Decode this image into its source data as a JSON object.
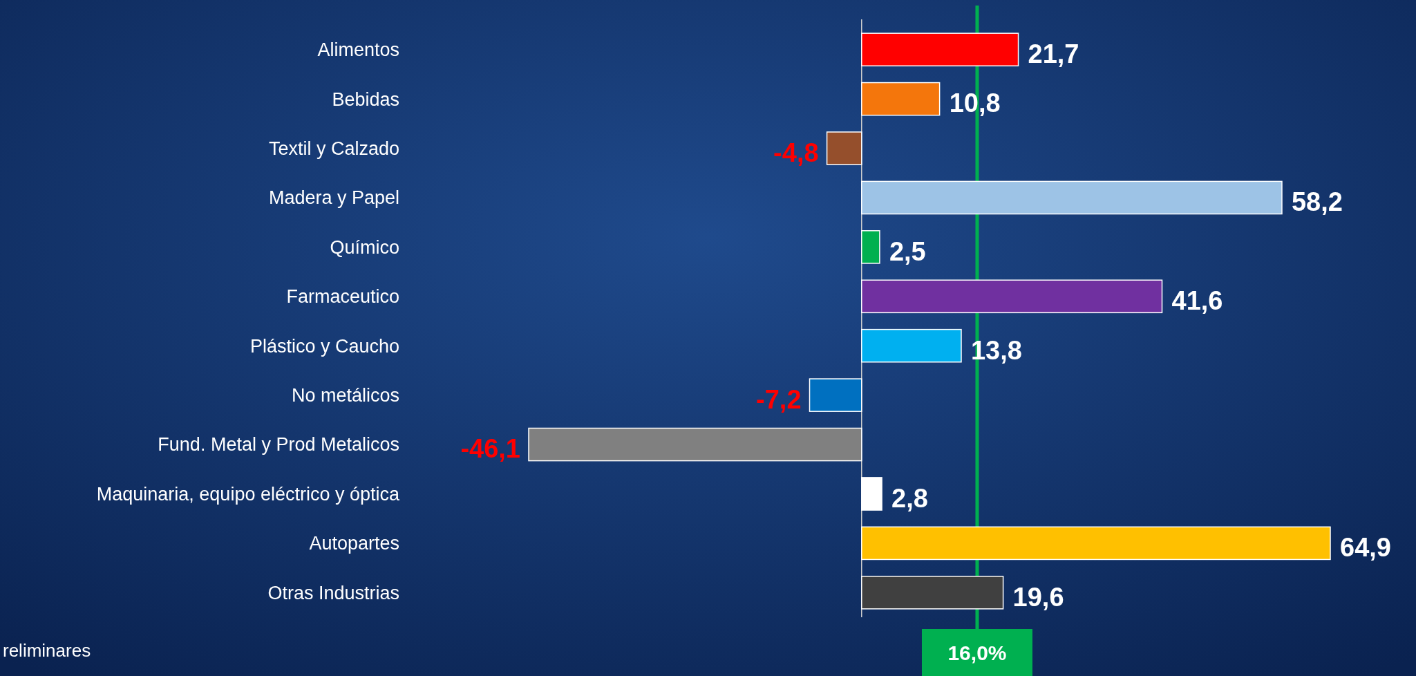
{
  "chart_data": {
    "type": "bar",
    "orientation": "horizontal",
    "categories": [
      "Alimentos",
      "Bebidas",
      "Textil y Calzado",
      "Madera y Papel",
      "Químico",
      "Farmaceutico",
      "Plástico y Caucho",
      "No metálicos",
      "Fund. Metal y Prod Metalicos",
      "Maquinaria, equipo eléctrico y óptica",
      "Autopartes",
      "Otras Industrias"
    ],
    "values": [
      21.7,
      10.8,
      -4.8,
      58.2,
      2.5,
      41.6,
      13.8,
      -7.2,
      -46.1,
      2.8,
      64.9,
      19.6
    ],
    "colors": [
      "#ff0000",
      "#f4760c",
      "#954f2c",
      "#9dc3e6",
      "#00b050",
      "#7030a0",
      "#00b0f0",
      "#0070c0",
      "#808080",
      "#ffffff",
      "#ffc000",
      "#404040"
    ],
    "value_labels": [
      "21,7",
      "10,8",
      "-4,8",
      "58,2",
      "2,5",
      "41,6",
      "13,8",
      "-7,2",
      "-46,1",
      "2,8",
      "64,9",
      "19,6"
    ],
    "ref_lines": [
      {
        "axis": "x",
        "value": 16.0,
        "label": "16,0%",
        "color": "#00b050"
      }
    ],
    "annotations": [
      "reliminares"
    ]
  }
}
